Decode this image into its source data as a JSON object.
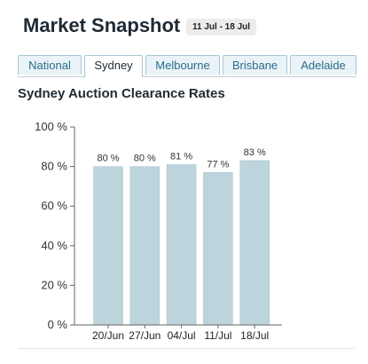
{
  "header": {
    "title": "Market Snapshot",
    "date_range": "11 Jul - 18 Jul"
  },
  "tabs": [
    {
      "label": "National",
      "active": false
    },
    {
      "label": "Sydney",
      "active": true
    },
    {
      "label": "Melbourne",
      "active": false
    },
    {
      "label": "Brisbane",
      "active": false
    },
    {
      "label": "Adelaide",
      "active": false
    }
  ],
  "section_title": "Sydney Auction Clearance Rates",
  "colors": {
    "bar": "#bcd4dc",
    "bar_edge": "#a9c3cc",
    "tab_text": "#2b6c8c",
    "axis": "#666666"
  },
  "chart_data": {
    "type": "bar",
    "title": "",
    "xlabel": "",
    "ylabel": "",
    "categories": [
      "20/Jun",
      "27/Jun",
      "04/Jul",
      "11/Jul",
      "18/Jul"
    ],
    "values": [
      80,
      80,
      81,
      77,
      83
    ],
    "value_labels": [
      "80 %",
      "80 %",
      "81 %",
      "77 %",
      "83 %"
    ],
    "ylim": [
      0,
      100
    ],
    "yticks": [
      0,
      20,
      40,
      60,
      80,
      100
    ],
    "ytick_labels": [
      "0 %",
      "20 %",
      "40 %",
      "60 %",
      "80 %",
      "100 %"
    ],
    "grid": false,
    "legend": "none"
  }
}
